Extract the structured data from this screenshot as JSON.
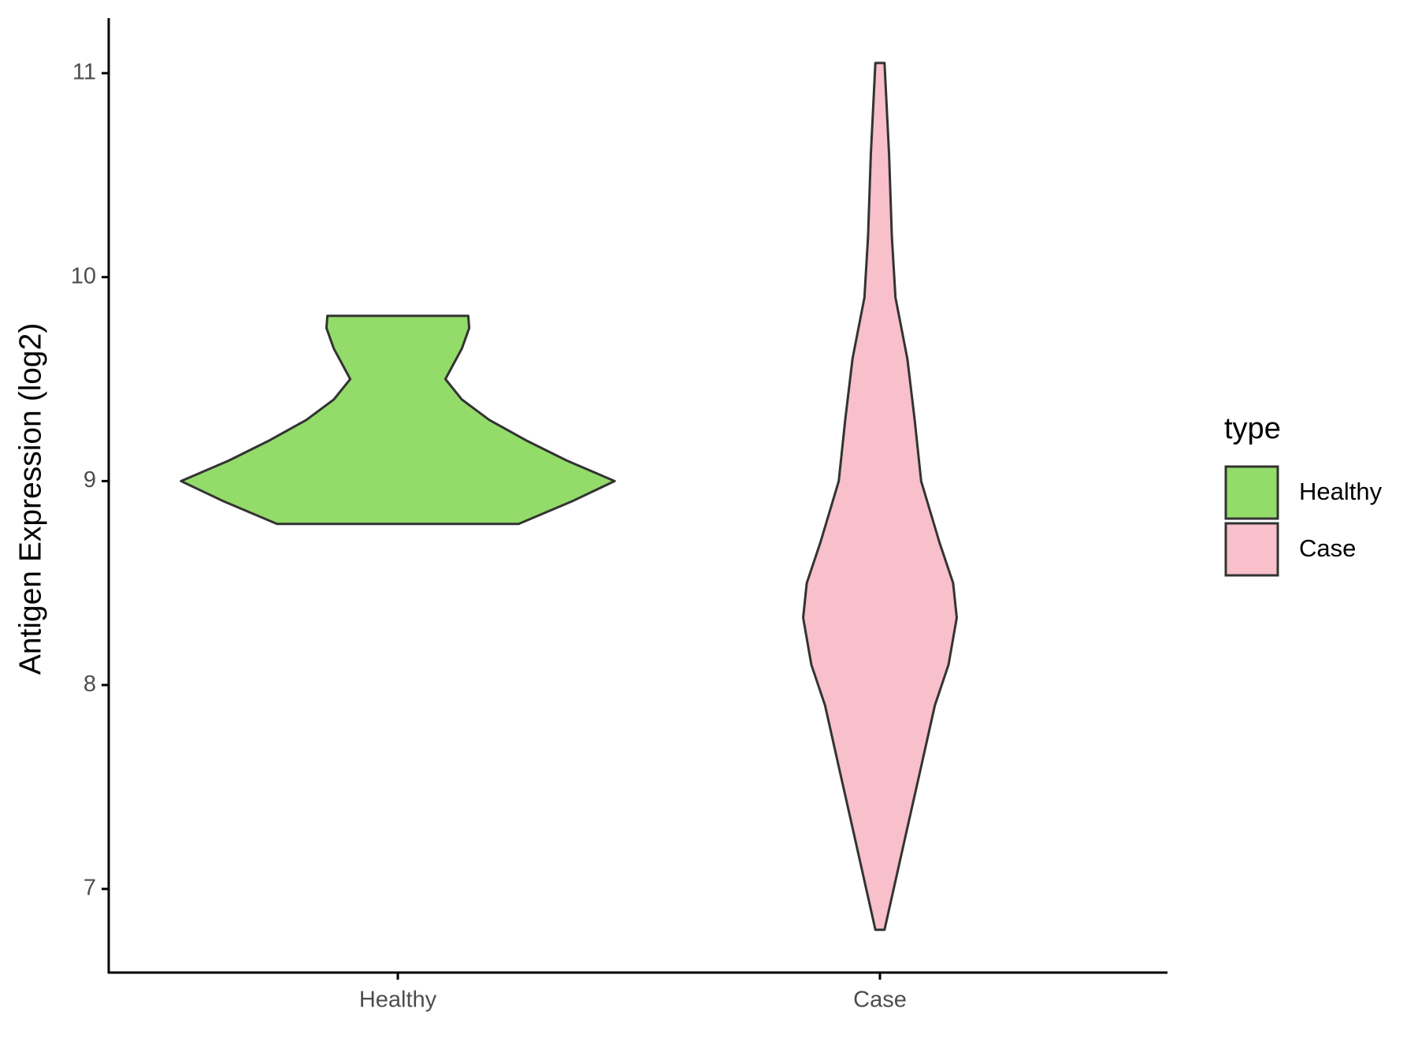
{
  "chart_data": {
    "type": "violin",
    "ylabel": "Antigen Expression (log2)",
    "categories": [
      "Healthy",
      "Case"
    ],
    "legend_title": "type",
    "legend": "right",
    "ylim": [
      6.59,
      11.27
    ],
    "yticks": [
      7,
      8,
      9,
      10,
      11
    ],
    "series": [
      {
        "name": "Healthy",
        "color": "#93dc6a",
        "y": [
          9.81,
          9.75,
          9.65,
          9.5,
          9.4,
          9.3,
          9.2,
          9.1,
          9.0,
          8.9,
          8.79
        ],
        "widths": [
          0.77,
          0.78,
          0.7,
          0.52,
          0.7,
          1.0,
          1.4,
          1.85,
          2.37,
          1.9,
          1.32
        ]
      },
      {
        "name": "Case",
        "color": "#f7c0cb",
        "y": [
          11.05,
          10.6,
          10.2,
          9.9,
          9.6,
          9.3,
          9.0,
          8.7,
          8.5,
          8.33,
          8.1,
          7.9,
          7.6,
          7.3,
          7.0,
          6.8
        ],
        "widths": [
          0.05,
          0.1,
          0.13,
          0.17,
          0.3,
          0.38,
          0.45,
          0.65,
          0.8,
          0.84,
          0.75,
          0.6,
          0.45,
          0.3,
          0.15,
          0.05
        ]
      }
    ]
  }
}
